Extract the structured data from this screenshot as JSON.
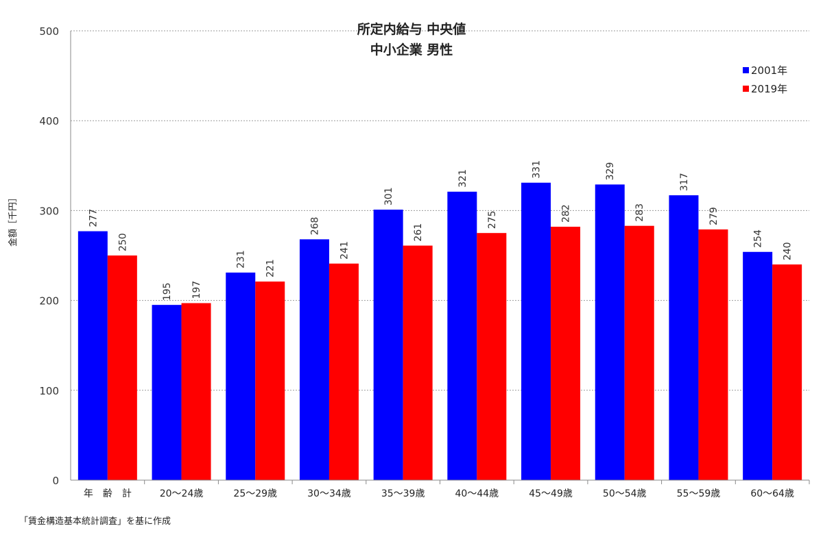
{
  "chart_data": {
    "type": "bar",
    "title": "所定内給与 中央値",
    "subtitle": "中小企業 男性",
    "ylabel": "金額［千円］",
    "xlabel": "",
    "ylim": [
      0,
      500
    ],
    "yticks": [
      0,
      100,
      200,
      300,
      400,
      500
    ],
    "grid": true,
    "legend_position": "top-right",
    "categories": [
      "年　齢　計",
      "20～24歳",
      "25～29歳",
      "30～34歳",
      "35～39歳",
      "40～44歳",
      "45～49歳",
      "50～54歳",
      "55～59歳",
      "60～64歳"
    ],
    "series": [
      {
        "name": "2001年",
        "color": "#0000ff",
        "values": [
          277,
          195,
          231,
          268,
          301,
          321,
          331,
          329,
          317,
          254
        ]
      },
      {
        "name": "2019年",
        "color": "#ff0000",
        "values": [
          250,
          197,
          221,
          241,
          261,
          275,
          282,
          283,
          279,
          240
        ]
      }
    ]
  },
  "footer": {
    "source": "「賃金構造基本統計調査」を基に作成"
  }
}
